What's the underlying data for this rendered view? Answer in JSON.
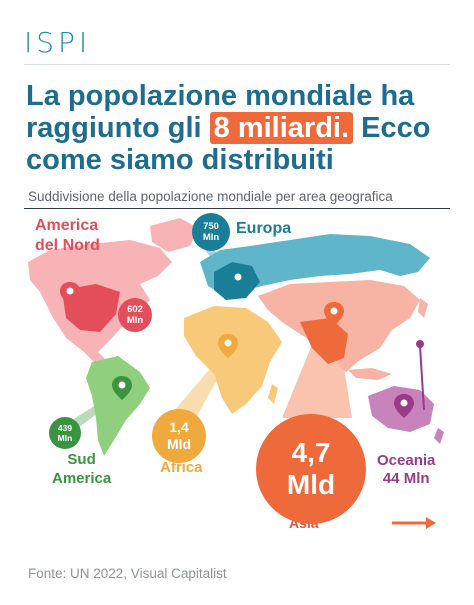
{
  "header": {
    "logo": "ISPI",
    "title_part1": "La popolazione mondiale ha raggiunto gli ",
    "title_highlight": "8 miliardi.",
    "title_part2": " Ecco come siamo distribuiti",
    "subtitle": "Suddivisione della popolazione mondiale per area geografica"
  },
  "regions": {
    "north_america": {
      "label_line1": "America",
      "label_line2": "del Nord",
      "value_num": "602",
      "value_unit": "Mln",
      "color": "#e44e5a"
    },
    "europe": {
      "label": "Europa",
      "value_num": "750",
      "value_unit": "Mln",
      "color": "#1b7e99"
    },
    "south_america": {
      "label_line1": "Sud",
      "label_line2": "America",
      "value_num": "439",
      "value_unit": "Mln",
      "color": "#3b9442"
    },
    "africa": {
      "label": "Africa",
      "value_num": "1,4",
      "value_unit": "Mld",
      "color": "#f0a93c"
    },
    "asia": {
      "label": "Asia",
      "value_num": "4,7",
      "value_unit": "Mld",
      "color": "#ef6a3a"
    },
    "oceania": {
      "label": "Oceania",
      "value": "44 Mln",
      "color": "#9b3a87"
    }
  },
  "icons": [
    "location-pin-icon",
    "arrow-right-icon"
  ],
  "footer": {
    "source": "Fonte: UN 2022, Visual Capitalist"
  }
}
